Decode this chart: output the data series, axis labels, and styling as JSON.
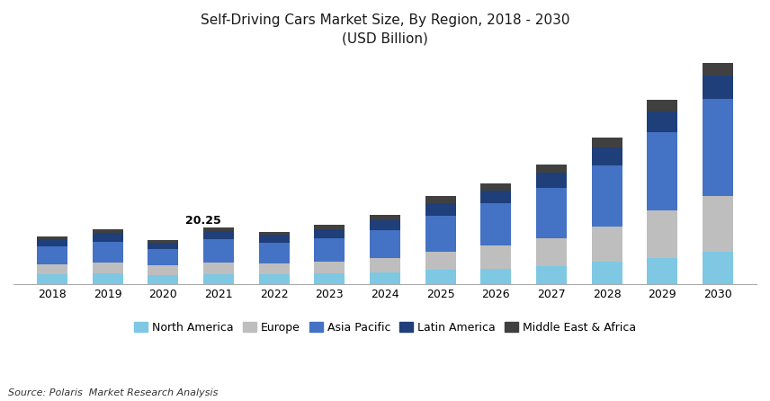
{
  "title_line1": "Self-Driving Cars Market Size, By Region, 2018 - 2030",
  "title_line2": "(USD Billion)",
  "source": "Source: Polaris  Market Research Analysis",
  "years": [
    2018,
    2019,
    2020,
    2021,
    2022,
    2023,
    2024,
    2025,
    2026,
    2027,
    2028,
    2029,
    2030
  ],
  "regions": [
    "North America",
    "Europe",
    "Asia Pacific",
    "Latin America",
    "Middle East & Africa"
  ],
  "colors": [
    "#7EC8E3",
    "#BEBEBE",
    "#4472C4",
    "#1F3F7A",
    "#404040"
  ],
  "data": {
    "North America": [
      3.5,
      3.8,
      3.2,
      3.6,
      3.5,
      3.8,
      4.2,
      5.0,
      5.5,
      6.5,
      8.0,
      9.5,
      11.5
    ],
    "Europe": [
      3.5,
      4.0,
      3.5,
      4.0,
      3.8,
      4.2,
      5.0,
      6.5,
      8.5,
      10.0,
      12.5,
      17.0,
      20.0
    ],
    "Asia Pacific": [
      6.5,
      7.5,
      6.0,
      8.5,
      7.5,
      8.5,
      10.0,
      13.0,
      15.0,
      18.0,
      22.0,
      28.0,
      35.0
    ],
    "Latin America": [
      2.5,
      3.0,
      2.2,
      3.0,
      2.8,
      3.2,
      3.8,
      4.5,
      4.5,
      5.5,
      6.5,
      7.5,
      8.5
    ],
    "Middle East & Africa": [
      1.1,
      1.3,
      0.9,
      1.15,
      1.2,
      1.5,
      1.8,
      2.5,
      2.5,
      3.0,
      3.5,
      4.0,
      4.5
    ]
  },
  "annotation_year": 2021,
  "annotation_text": "20.25",
  "annotation_fontsize": 9,
  "title_fontsize": 11,
  "axis_fontsize": 9,
  "legend_fontsize": 9,
  "bar_width": 0.55,
  "background_color": "#FFFFFF",
  "border_color": "#CCCCCC",
  "ylim_max": 82
}
